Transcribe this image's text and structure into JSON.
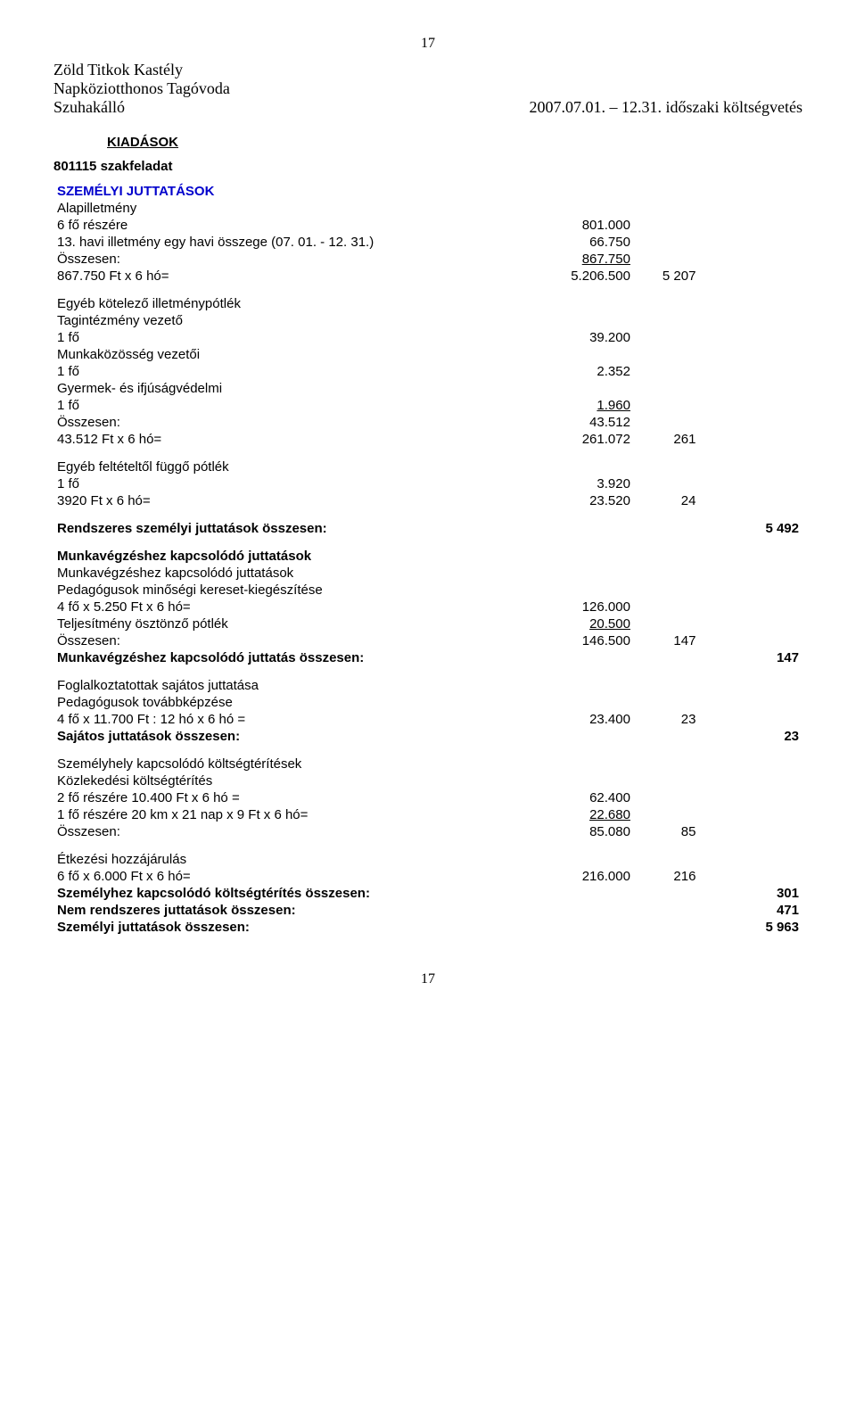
{
  "page_number_top": "17",
  "page_number_bottom": "17",
  "header": {
    "org_lines": [
      "Zöld Titkok Kastély",
      "Napköziotthonos Tagóvoda",
      "Szuhakálló"
    ],
    "period": "2007.07.01. – 12.31. időszaki költségvetés"
  },
  "section_title": "KIADÁSOK",
  "subfeladat": "801115 szakfeladat",
  "groups": {
    "szemelyi_title": "SZEMÉLYI JUTTATÁSOK",
    "alapilletmeny": {
      "line1": "Alapilletmény",
      "line2_label": "6 fő részére",
      "line2_val": "801.000",
      "line3_label": "13. havi illetmény egy havi összege (07. 01. - 12. 31.)",
      "line3_val": "66.750",
      "line4_label": "Összesen:",
      "line4_val": "867.750",
      "line5_label": "867.750 Ft x 6 hó=",
      "line5_val": "5.206.500",
      "line5_col2": "5 207"
    },
    "kotelezo": {
      "title": "Egyéb kötelező illetménypótlék",
      "l1": "Tagintézmény vezető",
      "l2_label": "1 fő",
      "l2_val": "39.200",
      "l3": "Munkaközösség vezetői",
      "l4_label": "1 fő",
      "l4_val": "2.352",
      "l5": "Gyermek- és ifjúságvédelmi",
      "l6_label": "1 fő",
      "l6_val": "1.960",
      "l7_label": "Összesen:",
      "l7_val": "43.512",
      "l8_label": "43.512 Ft x 6 hó=",
      "l8_val": "261.072",
      "l8_col2": "261"
    },
    "feltetel": {
      "title": "Egyéb feltételtől függő pótlék",
      "l1_label": "1 fő",
      "l1_val": "3.920",
      "l2_label": "3920 Ft x 6 hó=",
      "l2_val": "23.520",
      "l2_col2": "24"
    },
    "rendszeres": {
      "label": "Rendszeres személyi juttatások összesen:",
      "val": "5 492"
    },
    "munka": {
      "title": "Munkavégzéshez kapcsolódó juttatások",
      "l1": "Munkavégzéshez kapcsolódó juttatások",
      "l2": "Pedagógusok minőségi kereset-kiegészítése",
      "l3_label": "4 fő x 5.250 Ft x 6 hó=",
      "l3_val": "126.000",
      "l4_label": "Teljesítmény ösztönző pótlék",
      "l4_val": "20.500",
      "l5_label": "Összesen:",
      "l5_val": "146.500",
      "l5_col2": "147",
      "l6_label": "Munkavégzéshez kapcsolódó juttatás összesen:",
      "l6_col3": "147"
    },
    "sajatos": {
      "l1": "Foglalkoztatottak sajátos juttatása",
      "l2": "Pedagógusok továbbképzése",
      "l3_label": "4 fő x 11.700 Ft : 12 hó x 6 hó =",
      "l3_val": "23.400",
      "l3_col2": "23",
      "l4_label": "Sajátos juttatások összesen:",
      "l4_col3": "23"
    },
    "szemelyhely": {
      "l1": "Személyhely kapcsolódó költségtérítések",
      "l2": "Közlekedési költségtérítés",
      "l3_label": "2 fő részére 10.400 Ft x 6 hó =",
      "l3_val": "62.400",
      "l4_label": "1 fő részére 20 km x 21 nap x 9 Ft x 6 hó=",
      "l4_val": "22.680",
      "l5_label": "Összesen:",
      "l5_val": "85.080",
      "l5_col2": "85"
    },
    "etkezesi": {
      "l1": "Étkezési hozzájárulás",
      "l2_label": "6 fő x 6.000 Ft x 6 hó=",
      "l2_val": "216.000",
      "l2_col2": "216",
      "l3_label": "Személyhez kapcsolódó költségtérítés összesen:",
      "l3_col3": "301",
      "l4_label": "Nem rendszeres juttatások összesen:",
      "l4_col3": "471",
      "l5_label": "Személyi juttatások összesen:",
      "l5_col3": "5 963"
    }
  }
}
